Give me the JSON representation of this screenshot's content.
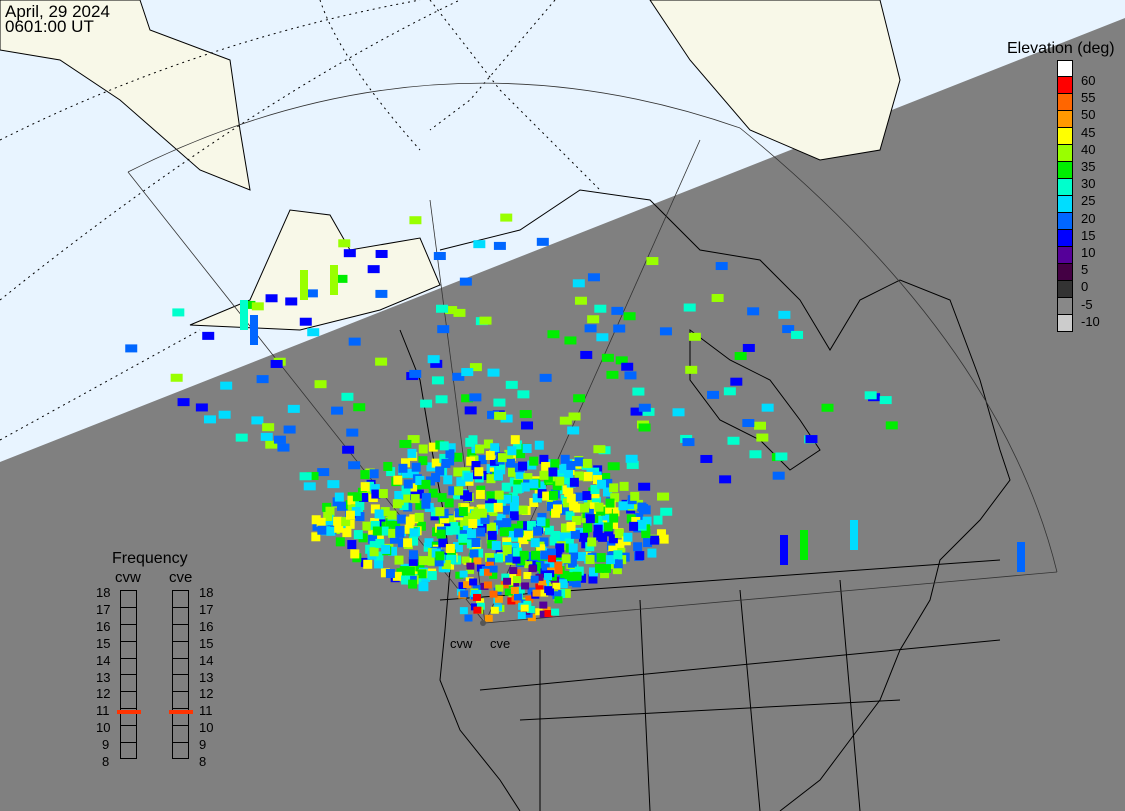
{
  "header": {
    "date": "April, 29 2024",
    "time": "0601:00 UT"
  },
  "legend": {
    "title": "Elevation (deg)",
    "colors": [
      "#ffffff",
      "#ff0000",
      "#ff6600",
      "#ff9900",
      "#ffff00",
      "#99ff00",
      "#00ee00",
      "#00ffcc",
      "#00ddff",
      "#0066ff",
      "#0000ff",
      "#550099",
      "#440044",
      "#333333",
      "#888888",
      "#cccccc"
    ],
    "labels": [
      "60",
      "55",
      "50",
      "45",
      "40",
      "35",
      "30",
      "25",
      "20",
      "15",
      "10",
      "5",
      "0",
      "-5",
      "-10"
    ]
  },
  "frequency": {
    "title": "Frequency",
    "unit_ticks": [
      "18",
      "17",
      "16",
      "15",
      "14",
      "13",
      "12",
      "11",
      "10",
      "9",
      "8"
    ],
    "radars": [
      {
        "name": "cvw",
        "value_mhz": 10.8
      },
      {
        "name": "cve",
        "value_mhz": 10.8
      }
    ],
    "marker_color": "#ff3300"
  },
  "sites": [
    {
      "name": "cvw"
    },
    {
      "name": "cve"
    }
  ],
  "map": {
    "day_color": "#e8f4ff",
    "land_day_color": "#f8f8e8",
    "night_color": "#808080"
  }
}
